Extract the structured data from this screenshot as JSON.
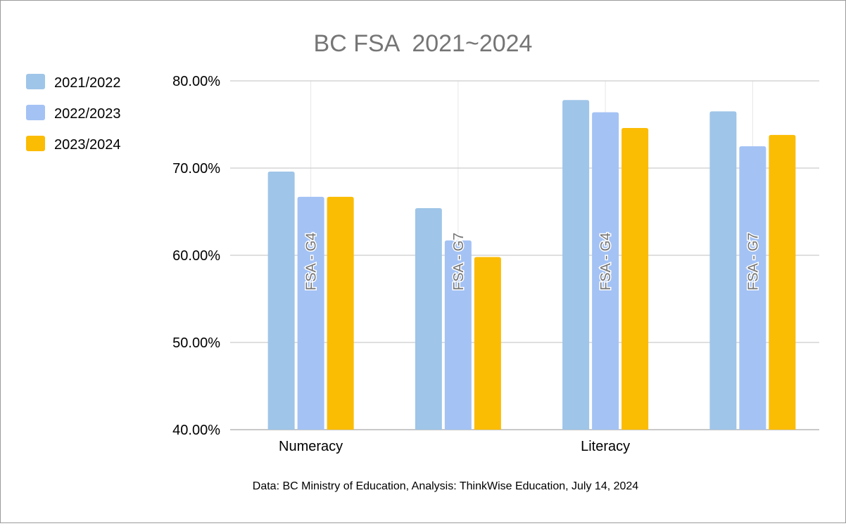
{
  "chart_data": {
    "type": "bar",
    "title": "BC FSA  2021~2024",
    "categories": [
      "FSA - G4",
      "FSA - G7",
      "FSA - G4",
      "FSA - G7"
    ],
    "category_groups": [
      {
        "label": "Numeracy",
        "categories": [
          0,
          1
        ]
      },
      {
        "label": "Literacy",
        "categories": [
          2,
          3
        ]
      }
    ],
    "series": [
      {
        "name": "2021/2022",
        "color": "#9fc5e8",
        "values": [
          69.6,
          65.4,
          77.8,
          76.5
        ]
      },
      {
        "name": "2022/2023",
        "color": "#a4c2f4",
        "values": [
          66.7,
          61.7,
          76.4,
          72.5
        ]
      },
      {
        "name": "2023/2024",
        "color": "#fbbc04",
        "values": [
          66.7,
          59.8,
          74.6,
          73.8
        ]
      }
    ],
    "ylim": [
      40,
      80
    ],
    "yticks": [
      "40.00%",
      "50.00%",
      "60.00%",
      "70.00%",
      "80.00%"
    ],
    "ytick_values": [
      40,
      50,
      60,
      70,
      80
    ],
    "grid": true,
    "legend": "left",
    "xlabel": "",
    "ylabel": "",
    "source_note": "Data: BC Ministry of Education, Analysis: ThinkWise Education, July 14, 2024"
  }
}
